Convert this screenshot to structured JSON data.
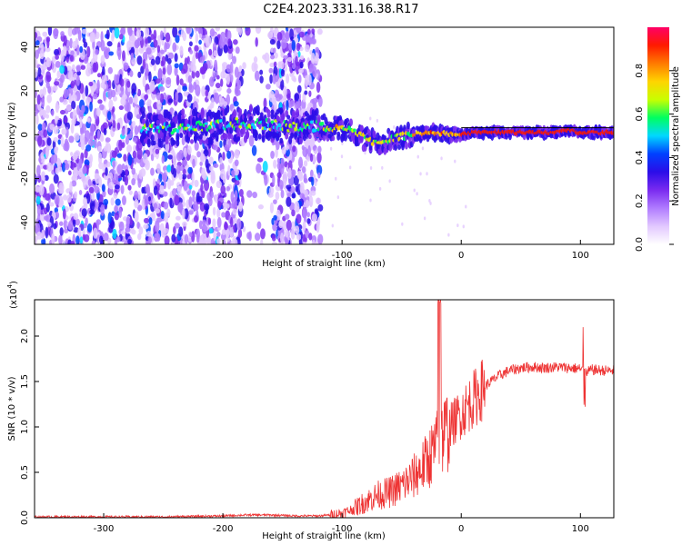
{
  "title": "C2E4.2023.331.16.38.R17",
  "chart_data": [
    {
      "type": "heatmap",
      "xlabel": "Height of straight line (km)",
      "ylabel": "Frequency (Hz)",
      "xlim": [
        -358,
        128
      ],
      "ylim": [
        -50,
        49
      ],
      "xticks": [
        -300,
        -200,
        -100,
        0,
        100
      ],
      "yticks": [
        -40,
        -20,
        0,
        20,
        40
      ],
      "colorbar": {
        "label": "Normalized spectral amplitude",
        "range": [
          0,
          1
        ],
        "ticks": [
          "0.0",
          "0.2",
          "0.4",
          "0.6",
          "0.8"
        ],
        "tick_values": [
          0,
          0.2,
          0.4,
          0.6,
          0.8
        ],
        "colors": [
          "#ffffff",
          "#e2c8ff",
          "#b07cff",
          "#7a2bf0",
          "#2b0de8",
          "#0040ff",
          "#00d8ff",
          "#00ff60",
          "#c8ff00",
          "#ffd400",
          "#ff7a00",
          "#ff1a00",
          "#ff0066"
        ]
      },
      "signal_track": {
        "x": [
          -265,
          -240,
          -210,
          -190,
          -170,
          -150,
          -130,
          -120,
          -110,
          -100,
          -90,
          -80,
          -70,
          -60,
          -50,
          -40,
          -30,
          -20,
          -10,
          0,
          10,
          20,
          40,
          60,
          80,
          90,
          100,
          110,
          128
        ],
        "y": [
          2,
          3,
          4,
          5,
          5,
          4,
          4,
          4,
          3,
          3,
          1,
          -2,
          -4,
          -2,
          -1,
          0,
          1,
          1,
          0,
          0,
          1,
          1,
          1,
          1,
          1,
          2,
          1,
          1,
          1
        ]
      }
    },
    {
      "type": "line",
      "xlabel": "Height of straight line (km)",
      "ylabel": "SNR (10 * v/v)",
      "yscale_label": "(x10",
      "yscale_exp": "4",
      "xlim": [
        -358,
        128
      ],
      "ylim": [
        0,
        2.4
      ],
      "xticks": [
        -300,
        -200,
        -100,
        0,
        100
      ],
      "yticks": [
        "0.0",
        "0.5",
        "1.0",
        "1.5",
        "2.0"
      ],
      "ytick_values": [
        0,
        0.5,
        1.0,
        1.5,
        2.0
      ],
      "series": [
        {
          "color": "#ee3333",
          "x": [
            -358,
            -300,
            -250,
            -200,
            -180,
            -160,
            -140,
            -120,
            -110,
            -100,
            -90,
            -80,
            -70,
            -60,
            -50,
            -40,
            -30,
            -20,
            -15,
            -10,
            0,
            10,
            20,
            30,
            40,
            50,
            60,
            70,
            80,
            90,
            100,
            105,
            110,
            120,
            128
          ],
          "y": [
            0.01,
            0.01,
            0.01,
            0.02,
            0.03,
            0.03,
            0.02,
            0.02,
            0.03,
            0.05,
            0.1,
            0.18,
            0.25,
            0.28,
            0.35,
            0.45,
            0.6,
            0.8,
            0.9,
            1.0,
            1.15,
            1.3,
            1.45,
            1.55,
            1.62,
            1.65,
            1.66,
            1.65,
            1.66,
            1.65,
            1.64,
            1.6,
            1.63,
            1.62,
            1.62
          ]
        }
      ]
    }
  ]
}
